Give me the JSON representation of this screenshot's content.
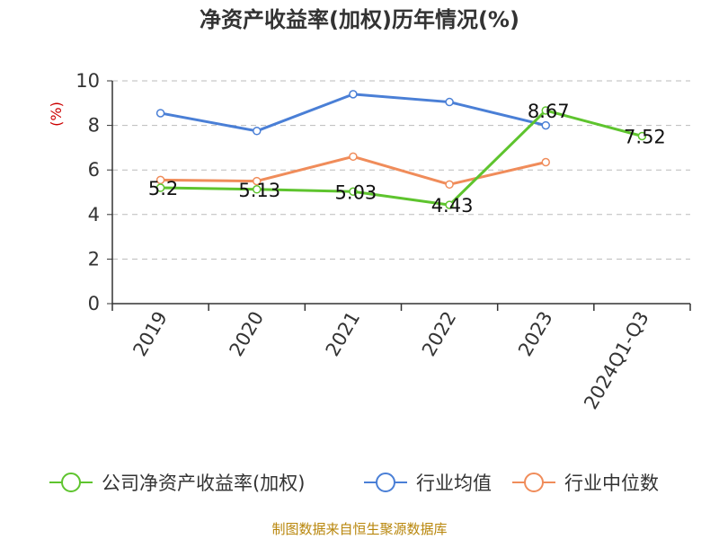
{
  "chart_data": {
    "type": "line",
    "title": "净资产收益率(加权)历年情况(%)",
    "ylabel": "(%)",
    "xlabel": "",
    "ylim": [
      0,
      10
    ],
    "yticks": [
      0,
      2,
      4,
      6,
      8,
      10
    ],
    "grid": true,
    "legend_position": "bottom",
    "categories": [
      "2019",
      "2020",
      "2021",
      "2022",
      "2023",
      "2024Q1-Q3"
    ],
    "series": [
      {
        "name": "公司净资产收益率(加权)",
        "color": "#5ec42e",
        "values": [
          5.2,
          5.13,
          5.03,
          4.43,
          8.67,
          7.52
        ],
        "labels": [
          "5.2",
          "5.13",
          "5.03",
          "4.43",
          "8.67",
          "7.52"
        ]
      },
      {
        "name": "行业均值",
        "color": "#4a7fd6",
        "values": [
          8.55,
          7.75,
          9.4,
          9.05,
          8.0,
          null
        ]
      },
      {
        "name": "行业中位数",
        "color": "#f08c5a",
        "values": [
          5.55,
          5.5,
          6.6,
          5.35,
          6.35,
          null
        ]
      }
    ],
    "source": "制图数据来自恒生聚源数据库"
  }
}
